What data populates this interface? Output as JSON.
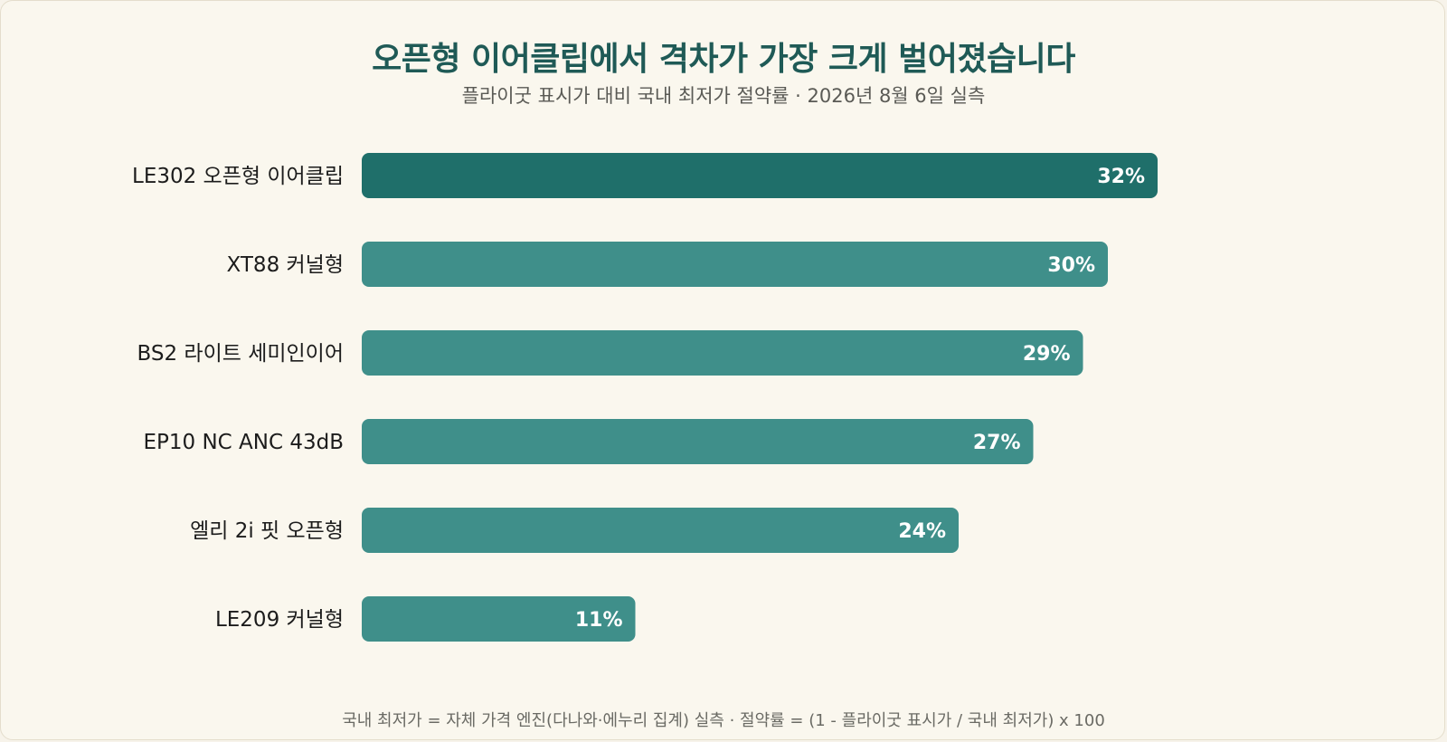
{
  "chart_data": {
    "type": "bar",
    "orientation": "horizontal",
    "title": "오픈형 이어클립에서 격차가 가장 크게 벌어졌습니다",
    "subtitle": "플라이굿 표시가 대비 국내 최저가 절약률 · 2026년 8월 6일 실측",
    "categories": [
      "LE302 오픈형 이어클립",
      "XT88 커널형",
      "BS2 라이트 세미인이어",
      "EP10 NC ANC 43dB",
      "엘리 2i 핏 오픈형",
      "LE209 커널형"
    ],
    "values": [
      32,
      30,
      29,
      27,
      24,
      11
    ],
    "value_labels": [
      "32%",
      "30%",
      "29%",
      "27%",
      "24%",
      "11%"
    ],
    "unit": "%",
    "highlight_index": 0,
    "colors": {
      "highlight": "#1f6f6a",
      "bar": "#3f8f8a"
    },
    "footnote": "국내 최저가 = 자체 가격 엔진(다나와·에누리 집계) 실측 · 절약률 = (1 - 플라이굿 표시가 / 국내 최저가) x 100"
  }
}
